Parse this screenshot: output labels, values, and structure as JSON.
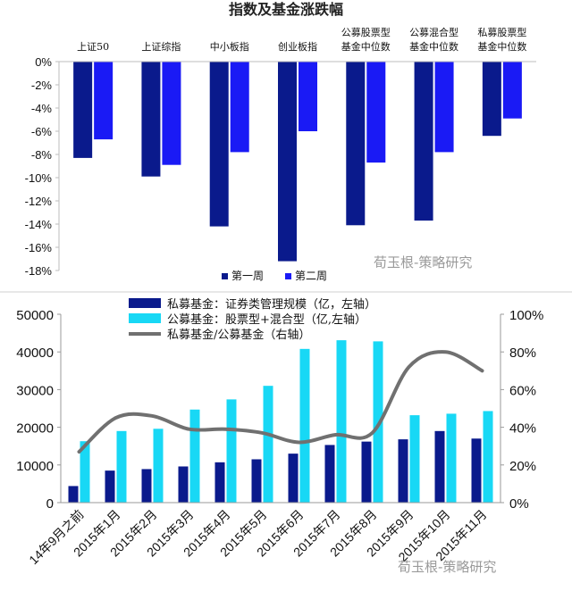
{
  "colors": {
    "week1": "#0a1a8c",
    "week2": "#1a1af5",
    "private": "#0a1a8c",
    "public": "#18d8f5",
    "ratio": "#707070"
  },
  "watermark": "荀玉根-策略研究",
  "chart_data": [
    {
      "type": "bar",
      "title": "指数及基金涨跌幅",
      "categories": [
        "上证50",
        "上证综指",
        "中小板指",
        "创业板指",
        "公募股票型\n基金中位数",
        "公募混合型\n基金中位数",
        "私募股票型\n基金中位数"
      ],
      "series": [
        {
          "name": "第一周",
          "values": [
            -8.3,
            -9.9,
            -14.2,
            -17.2,
            -14.1,
            -13.7,
            -6.4
          ]
        },
        {
          "name": "第二周",
          "values": [
            -6.7,
            -8.9,
            -7.8,
            -6.0,
            -8.7,
            -7.8,
            -4.9
          ]
        }
      ],
      "ylim": [
        -18,
        0
      ],
      "yticks": [
        "0%",
        "-2%",
        "-4%",
        "-6%",
        "-8%",
        "-10%",
        "-12%",
        "-14%",
        "-16%",
        "-18%"
      ],
      "legend": [
        "第一周",
        "第二周"
      ]
    },
    {
      "type": "bar",
      "categories": [
        "14年9月之前",
        "2015年1月",
        "2015年2月",
        "2015年3月",
        "2015年4月",
        "2015年5月",
        "2015年6月",
        "2015年7月",
        "2015年8月",
        "2015年9月",
        "2015年10月",
        "2015年11月"
      ],
      "series": [
        {
          "name": "私募基金：证券类管理规模（亿，左轴）",
          "values": [
            4400,
            8500,
            8900,
            9600,
            10700,
            11500,
            13000,
            15300,
            16200,
            16800,
            19000,
            17000
          ]
        },
        {
          "name": "公募基金：股票型+混合型（亿,左轴）",
          "values": [
            16300,
            19000,
            19600,
            24700,
            27400,
            31000,
            40800,
            43100,
            42800,
            23200,
            23600,
            24300
          ]
        },
        {
          "name": "私募基金/公募基金（右轴）",
          "axis": "right",
          "line": true,
          "values": [
            27,
            45,
            46,
            39,
            39,
            37,
            32,
            36,
            37,
            72,
            80,
            70
          ]
        }
      ],
      "ylim_left": [
        0,
        50000
      ],
      "yticks_left": [
        "0",
        "10000",
        "20000",
        "30000",
        "40000",
        "50000"
      ],
      "ylim_right": [
        0,
        100
      ],
      "yticks_right": [
        "0%",
        "20%",
        "40%",
        "60%",
        "80%",
        "100%"
      ]
    }
  ]
}
